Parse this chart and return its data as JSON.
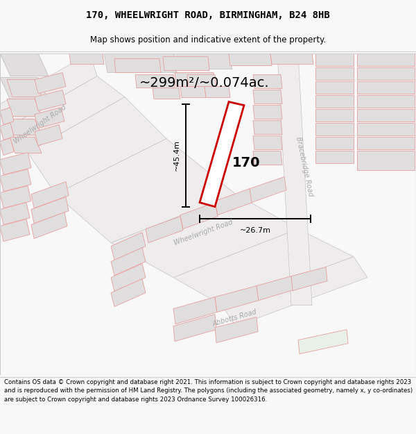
{
  "title_line1": "170, WHEELWRIGHT ROAD, BIRMINGHAM, B24 8HB",
  "title_line2": "Map shows position and indicative extent of the property.",
  "footer_text": "Contains OS data © Crown copyright and database right 2021. This information is subject to Crown copyright and database rights 2023 and is reproduced with the permission of\nHM Land Registry. The polygons (including the associated geometry, namely x, y co-ordinates) are subject to Crown copyright and database rights 2023 Ordnance Survey\n100026316.",
  "area_label": "~299m²/~0.074ac.",
  "width_label": "~26.7m",
  "height_label": "~45.4m",
  "number_label": "170",
  "bg_color": "#f8f8f8",
  "map_bg": "#f2f0f0",
  "pink": "#e8a0a0",
  "red": "#cc0000",
  "grey_fill": "#e0dede",
  "white_fill": "#f8f8f8",
  "road_text": "#aaaaaa",
  "dim_color": "#111111",
  "title_fontsize": 10,
  "subtitle_fontsize": 8.5,
  "footer_fontsize": 6.2,
  "area_fontsize": 14,
  "num_fontsize": 14,
  "dim_fontsize": 8,
  "road_fontsize": 7
}
